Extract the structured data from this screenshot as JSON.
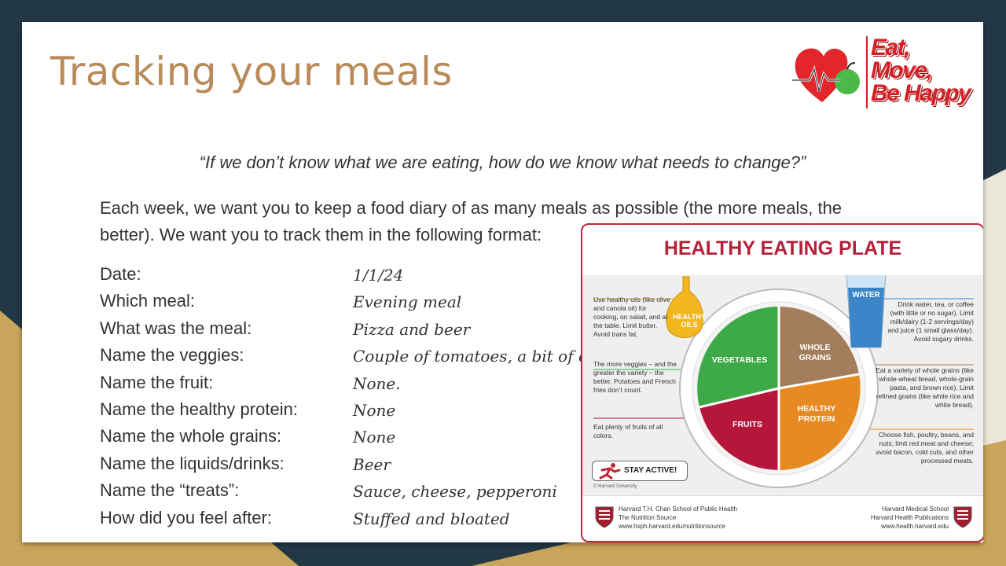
{
  "slide": {
    "title": "Tracking your meals",
    "quote": "“If we don’t know what we are eating, how do we know what needs to change?”",
    "intro": "Each week, we want you to keep a food diary of as many meals as possible (the more meals, the better).  We want you to track them in the following format:"
  },
  "logo": {
    "line1": "Eat,",
    "line2": "Move,",
    "line3": "Be Happy"
  },
  "diary": [
    {
      "label": "Date:",
      "value": "1/1/24"
    },
    {
      "label": "Which meal:",
      "value": "Evening meal"
    },
    {
      "label": "What was the meal:",
      "value": "Pizza and beer"
    },
    {
      "label": "Name the veggies:",
      "value": "Couple of tomatoes, a bit of onion."
    },
    {
      "label": "Name the fruit:",
      "value": "None."
    },
    {
      "label": "Name the healthy protein:",
      "value": "None"
    },
    {
      "label": "Name the whole grains:",
      "value": "None"
    },
    {
      "label": "Name the liquids/drinks:",
      "value": "Beer"
    },
    {
      "label": "Name the “treats”:",
      "value": "Sauce, cheese, pepperoni"
    },
    {
      "label": "How did you feel after:",
      "value": "Stuffed and bloated"
    }
  ],
  "plate": {
    "title": "HEALTHY EATING PLATE",
    "oils": "HEALTHY OILS",
    "water": "WATER",
    "vegetables": "VEGETABLES",
    "whole_grains": "WHOLE GRAINS",
    "fruits": "FRUITS",
    "protein": "HEALTHY PROTEIN",
    "note_oils": "Use healthy oils (like olive and canola oil) for cooking, on salad, and at the table. Limit butter. Avoid trans fat.",
    "note_veggies": "The more veggies – and the greater the variety – the better. Potatoes and French fries don’t count.",
    "note_fruits": "Eat plenty of fruits of all colors.",
    "note_water": "Drink water, tea, or coffee (with little or no sugar). Limit milk/dairy (1-2 servings/day) and juice (1 small glass/day). Avoid sugary drinks.",
    "note_grains": "Eat a variety of whole grains (like whole-wheat bread, whole-grain pasta, and brown rice). Limit refined grains (like white rice and white bread).",
    "note_protein": "Choose fish, poultry, beans, and nuts;  limit red meat and cheese; avoid bacon, cold cuts, and other processed meats.",
    "stay_active": "STAY ACTIVE!",
    "copyright": "© Harvard University",
    "footer_left": [
      "Harvard T.H. Chan School of Public Health",
      "The Nutrition Source",
      "www.hsph.harvard.edu/nutritionsource"
    ],
    "footer_right": [
      "Harvard Medical School",
      "Harvard Health Publications",
      "www.health.harvard.edu"
    ]
  },
  "colors": {
    "background": "#223845",
    "gold": "#c8a55a",
    "title": "#b98a5a",
    "plate_border": "#c2263a",
    "vegetables": "#3daa47",
    "whole_grains": "#a47e5c",
    "fruits": "#b5163a",
    "protein": "#e88a22",
    "oil": "#f2b61f",
    "water": "#3a86c8"
  }
}
